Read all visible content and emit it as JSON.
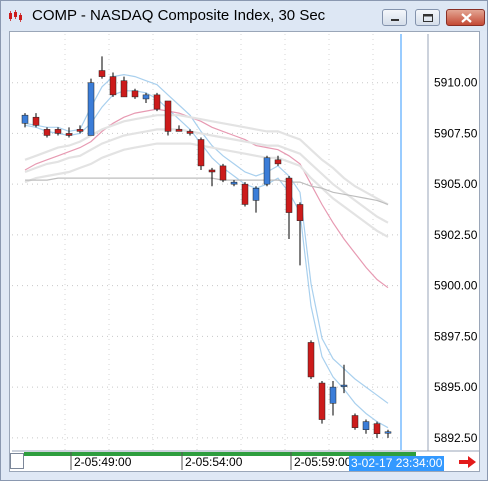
{
  "window": {
    "title": "COMP - NASDAQ Composite Index, 30 Sec",
    "buttons": [
      "minimize",
      "maximize",
      "close"
    ]
  },
  "colors": {
    "up_candle": "#3b7dd8",
    "down_candle": "#cc1b1b",
    "ma_fast": "#a9d0ee",
    "ma_medium": "#e79ab2",
    "ma_slow": "#e3e3e3",
    "ma_long": "#bdbdbd",
    "cursor_line": "#3399ff",
    "volume_bar": "#2e9e3e"
  },
  "chart_data": {
    "type": "candlestick",
    "title": "COMP - NASDAQ Composite Index, 30 Sec",
    "y_axis": {
      "ticks": [
        "5910.00",
        "5907.50",
        "5905.00",
        "5902.50",
        "5900.00",
        "5897.50",
        "5895.00",
        "5892.50"
      ],
      "range": [
        5891.9,
        5912.4
      ],
      "position": "right"
    },
    "x_axis": {
      "ticks": [
        "2-05:49:00",
        "2-05:54:00",
        "2-05:59:00"
      ]
    },
    "current_time_label": "3-02-17 23:34:00",
    "candles": [
      {
        "o": 5908.0,
        "h": 5908.5,
        "l": 5907.8,
        "c": 5908.4
      },
      {
        "o": 5908.3,
        "h": 5908.5,
        "l": 5907.8,
        "c": 5907.9
      },
      {
        "o": 5907.7,
        "h": 5907.8,
        "l": 5907.3,
        "c": 5907.4
      },
      {
        "o": 5907.7,
        "h": 5907.8,
        "l": 5907.4,
        "c": 5907.5
      },
      {
        "o": 5907.5,
        "h": 5907.8,
        "l": 5907.3,
        "c": 5907.4
      },
      {
        "o": 5907.7,
        "h": 5907.9,
        "l": 5907.5,
        "c": 5907.6
      },
      {
        "o": 5907.4,
        "h": 5910.2,
        "l": 5907.4,
        "c": 5910.0
      },
      {
        "o": 5910.6,
        "h": 5911.3,
        "l": 5910.2,
        "c": 5910.3
      },
      {
        "o": 5910.3,
        "h": 5910.5,
        "l": 5909.3,
        "c": 5909.4
      },
      {
        "o": 5910.1,
        "h": 5910.3,
        "l": 5909.3,
        "c": 5909.3
      },
      {
        "o": 5909.6,
        "h": 5909.7,
        "l": 5909.2,
        "c": 5909.3
      },
      {
        "o": 5909.2,
        "h": 5909.5,
        "l": 5909.0,
        "c": 5909.4
      },
      {
        "o": 5909.4,
        "h": 5909.5,
        "l": 5908.6,
        "c": 5908.7
      },
      {
        "o": 5909.1,
        "h": 5909.1,
        "l": 5907.4,
        "c": 5907.6
      },
      {
        "o": 5907.7,
        "h": 5907.9,
        "l": 5907.6,
        "c": 5907.6
      },
      {
        "o": 5907.6,
        "h": 5907.7,
        "l": 5907.4,
        "c": 5907.5
      },
      {
        "o": 5907.2,
        "h": 5907.3,
        "l": 5905.7,
        "c": 5905.9
      },
      {
        "o": 5905.7,
        "h": 5905.8,
        "l": 5904.9,
        "c": 5905.6
      },
      {
        "o": 5905.9,
        "h": 5906.0,
        "l": 5905.1,
        "c": 5905.2
      },
      {
        "o": 5905.0,
        "h": 5905.2,
        "l": 5904.9,
        "c": 5905.1
      },
      {
        "o": 5905.0,
        "h": 5905.1,
        "l": 5903.9,
        "c": 5904.0
      },
      {
        "o": 5904.2,
        "h": 5904.9,
        "l": 5903.6,
        "c": 5904.8
      },
      {
        "o": 5905.0,
        "h": 5906.4,
        "l": 5904.9,
        "c": 5906.3
      },
      {
        "o": 5906.2,
        "h": 5906.4,
        "l": 5905.9,
        "c": 5906.0
      },
      {
        "o": 5905.3,
        "h": 5905.4,
        "l": 5902.3,
        "c": 5903.6
      },
      {
        "o": 5904.0,
        "h": 5904.1,
        "l": 5901.0,
        "c": 5903.2
      },
      {
        "o": 5897.2,
        "h": 5897.3,
        "l": 5895.4,
        "c": 5895.5
      },
      {
        "o": 5895.2,
        "h": 5895.3,
        "l": 5893.2,
        "c": 5893.4
      },
      {
        "o": 5894.2,
        "h": 5895.3,
        "l": 5893.6,
        "c": 5895.0
      },
      {
        "o": 5895.1,
        "h": 5896.1,
        "l": 5894.7,
        "c": 5895.1
      },
      {
        "o": 5893.6,
        "h": 5893.7,
        "l": 5892.9,
        "c": 5893.0
      },
      {
        "o": 5892.9,
        "h": 5893.4,
        "l": 5892.7,
        "c": 5893.3
      },
      {
        "o": 5893.2,
        "h": 5893.3,
        "l": 5892.5,
        "c": 5892.7
      },
      {
        "o": 5892.8,
        "h": 5892.9,
        "l": 5892.5,
        "c": 5892.8
      }
    ],
    "moving_averages": [
      {
        "name": "ma_fast_upper",
        "color_key": "ma_fast",
        "values": [
          5908.0,
          5907.9,
          5907.8,
          5907.8,
          5907.6,
          5907.7,
          5908.8,
          5909.8,
          5910.3,
          5910.4,
          5910.3,
          5910.1,
          5909.9,
          5909.4,
          5908.9,
          5908.4,
          5907.6,
          5906.9,
          5906.4,
          5906.0,
          5905.6,
          5905.4,
          5905.6,
          5905.9,
          5905.4,
          5904.6,
          5900.1,
          5897.4,
          5896.4,
          5895.9,
          5895.4,
          5895.0,
          5894.6,
          5894.2
        ]
      },
      {
        "name": "ma_fast_lower",
        "color_key": "ma_fast",
        "values": [
          5907.9,
          5907.8,
          5907.6,
          5907.5,
          5907.4,
          5907.5,
          5908.0,
          5908.8,
          5909.4,
          5909.6,
          5909.6,
          5909.5,
          5909.2,
          5908.7,
          5908.2,
          5907.7,
          5907.0,
          5906.3,
          5905.8,
          5905.4,
          5905.0,
          5904.8,
          5905.0,
          5905.3,
          5904.6,
          5903.6,
          5899.0,
          5896.5,
          5895.5,
          5894.9,
          5894.2,
          5893.7,
          5893.3,
          5893.0
        ]
      },
      {
        "name": "ma_medium",
        "color_key": "ma_medium",
        "values": [
          5905.7,
          5906.0,
          5906.2,
          5906.4,
          5906.6,
          5906.8,
          5907.1,
          5907.6,
          5908.0,
          5908.3,
          5908.5,
          5908.6,
          5908.7,
          5908.6,
          5908.5,
          5908.3,
          5908.1,
          5907.8,
          5907.6,
          5907.4,
          5907.2,
          5906.9,
          5906.8,
          5906.7,
          5906.4,
          5906.0,
          5905.0,
          5904.0,
          5903.1,
          5902.3,
          5901.6,
          5900.9,
          5900.3,
          5899.9
        ]
      },
      {
        "name": "ma_slow_band_top",
        "color_key": "ma_slow",
        "values": [
          5906.2,
          5906.4,
          5906.6,
          5906.8,
          5906.9,
          5907.1,
          5907.4,
          5907.7,
          5907.9,
          5908.1,
          5908.2,
          5908.3,
          5908.4,
          5908.4,
          5908.4,
          5908.3,
          5908.2,
          5908.1,
          5908.0,
          5907.9,
          5907.8,
          5907.7,
          5907.6,
          5907.6,
          5907.4,
          5907.2,
          5906.7,
          5906.2,
          5905.8,
          5905.3,
          5904.9,
          5904.6,
          5904.3,
          5904.0
        ]
      },
      {
        "name": "ma_slow_band_mid",
        "color_key": "ma_slow",
        "values": [
          5905.6,
          5905.8,
          5906.0,
          5906.1,
          5906.3,
          5906.4,
          5906.7,
          5907.0,
          5907.2,
          5907.4,
          5907.5,
          5907.6,
          5907.7,
          5907.7,
          5907.7,
          5907.6,
          5907.5,
          5907.4,
          5907.3,
          5907.2,
          5907.1,
          5907.0,
          5906.9,
          5906.9,
          5906.7,
          5906.5,
          5906.0,
          5905.5,
          5905.0,
          5904.6,
          5904.2,
          5903.8,
          5903.4,
          5903.1
        ]
      },
      {
        "name": "ma_slow_band_bottom",
        "color_key": "ma_slow",
        "values": [
          5905.1,
          5905.3,
          5905.4,
          5905.5,
          5905.6,
          5905.8,
          5906.0,
          5906.3,
          5906.5,
          5906.7,
          5906.8,
          5906.9,
          5907.0,
          5907.0,
          5907.0,
          5907.0,
          5906.9,
          5906.8,
          5906.7,
          5906.6,
          5906.5,
          5906.4,
          5906.3,
          5906.3,
          5906.1,
          5905.9,
          5905.3,
          5904.8,
          5904.3,
          5903.9,
          5903.5,
          5903.1,
          5902.7,
          5902.4
        ]
      },
      {
        "name": "ma_long",
        "color_key": "ma_long",
        "values": [
          5905.2,
          5905.2,
          5905.2,
          5905.3,
          5905.3,
          5905.3,
          5905.3,
          5905.3,
          5905.3,
          5905.3,
          5905.3,
          5905.3,
          5905.3,
          5905.3,
          5905.3,
          5905.3,
          5905.3,
          5905.3,
          5905.2,
          5905.2,
          5905.2,
          5905.2,
          5905.2,
          5905.2,
          5905.1,
          5905.1,
          5904.9,
          5904.8,
          5904.6,
          5904.5,
          5904.4,
          5904.3,
          5904.2,
          5904.0
        ]
      }
    ],
    "grid": true,
    "grid_style": "dotted"
  }
}
